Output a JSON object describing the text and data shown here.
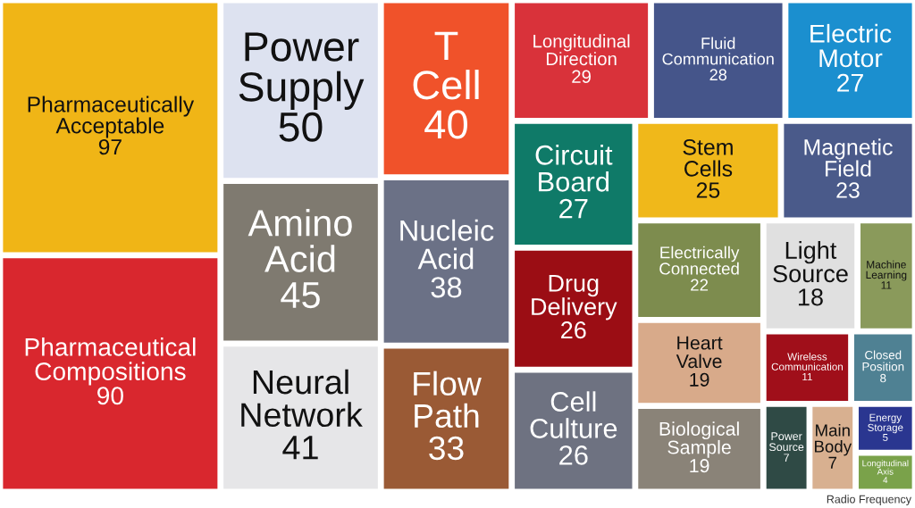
{
  "chart_data": {
    "type": "other",
    "categories": [
      "Pharmaceutically Acceptable",
      "Pharmaceutical Compositions",
      "Power Supply",
      "Amino Acid",
      "Neural Network",
      "T Cell",
      "Nucleic Acid",
      "Flow Path",
      "Longitudinal Direction",
      "Fluid Communication",
      "Electric Motor",
      "Circuit Board",
      "Drug Delivery",
      "Cell Culture",
      "Stem Cells",
      "Magnetic Field",
      "Electrically Connected",
      "Heart Valve",
      "Biological Sample",
      "Light Source",
      "Machine Learning",
      "Wireless Communication",
      "Closed Position",
      "Power Source",
      "Main Body",
      "Energy Storage",
      "Longitudinal Axis"
    ],
    "values": [
      97,
      90,
      50,
      45,
      41,
      40,
      38,
      33,
      29,
      28,
      27,
      27,
      26,
      26,
      25,
      23,
      22,
      19,
      19,
      18,
      11,
      11,
      8,
      7,
      7,
      5,
      4
    ],
    "colors": [
      "#f0b516",
      "#d9272e",
      "#dde2f0",
      "#7f7a70",
      "#e6e6e8",
      "#f0522a",
      "#6b7186",
      "#9a5a35",
      "#d9323a",
      "#45558a",
      "#1b8fcf",
      "#0f7a68",
      "#9b0d14",
      "#6e7281",
      "#f0b81a",
      "#4a5a8a",
      "#7d8c4e",
      "#d8aa8a",
      "#8a8378",
      "#e0e0e0",
      "#8a9a5b",
      "#a00f1a",
      "#4f8193",
      "#2f4a45",
      "#d8b090",
      "#2a3690",
      "#7aa24a"
    ],
    "data_labels": true,
    "annotations": [
      "Radio Frequency"
    ]
  }
}
